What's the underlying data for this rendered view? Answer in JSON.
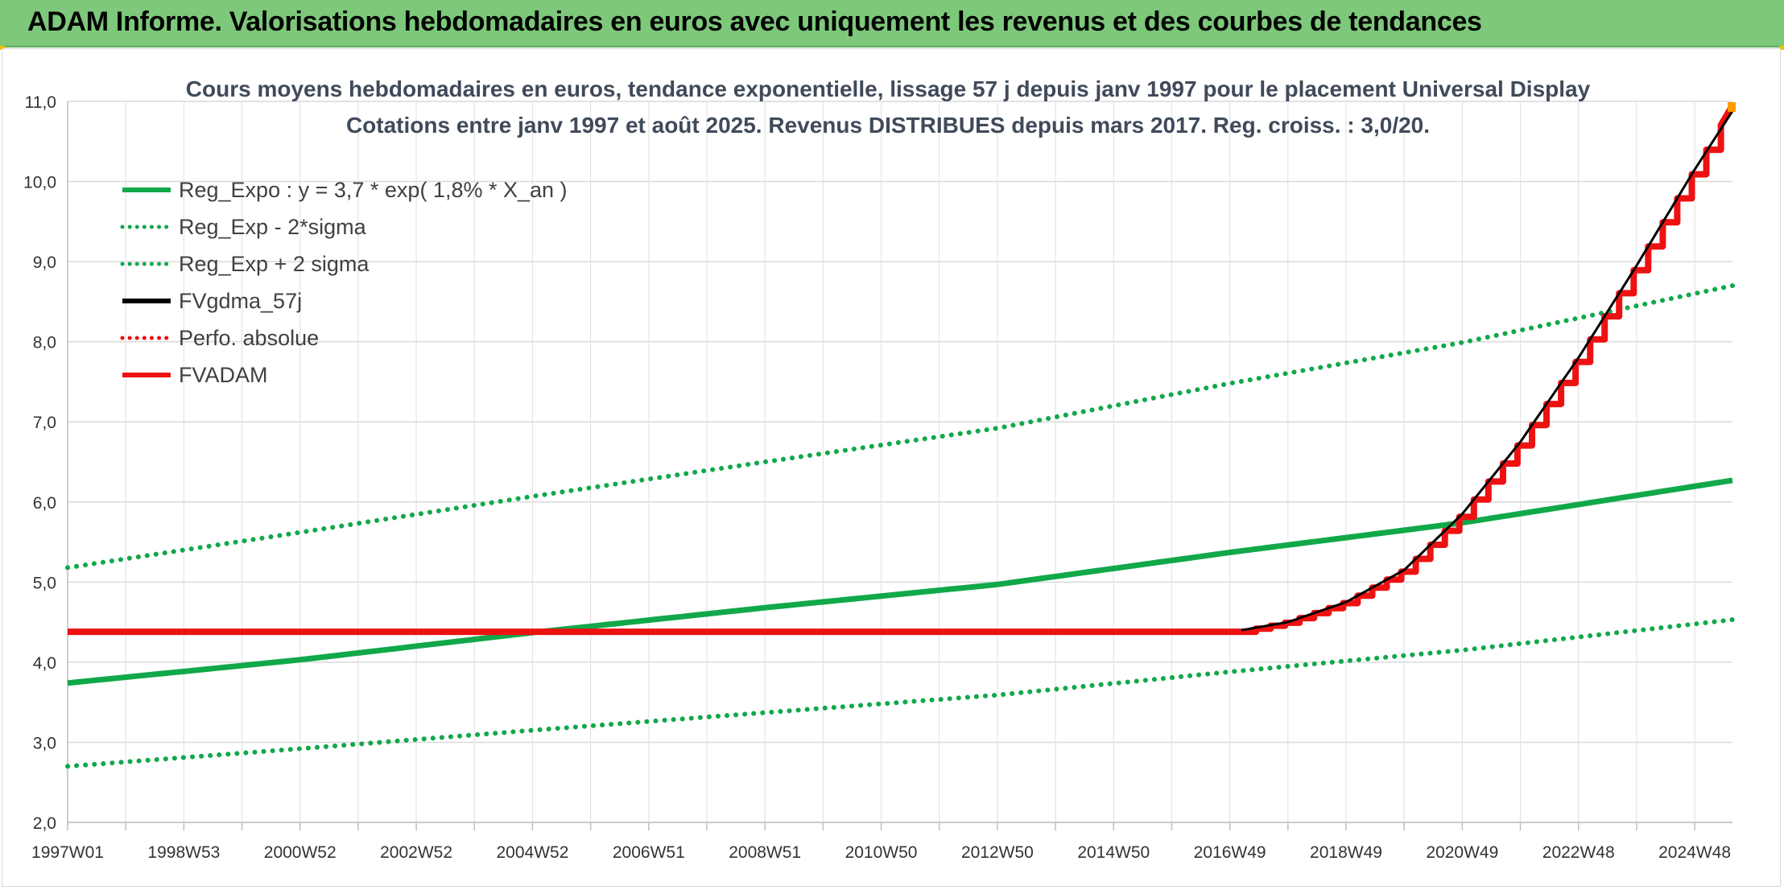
{
  "header": {
    "title": "ADAM Informe. Valorisations hebdomadaires en euros avec uniquement les revenus et des courbes de tendances"
  },
  "colors": {
    "banner": "#7dc87a",
    "green": "#11a84a",
    "red": "#ee1111",
    "black": "#000000",
    "grid": "#d9d9d9"
  },
  "chart_data": {
    "type": "line",
    "title_lines": [
      "Cours moyens hebdomadaires en euros, tendance exponentielle, lissage 57 j depuis janv 1997 pour le placement Universal Display",
      "Cotations entre janv 1997 et août 2025. Revenus DISTRIBUES depuis mars 2017. Reg. croiss. : 3,0/20."
    ],
    "x_ticks": [
      "1997W01",
      "1998W53",
      "2000W52",
      "2002W52",
      "2004W52",
      "2006W51",
      "2008W51",
      "2010W50",
      "2012W50",
      "2014W50",
      "2016W49",
      "2018W49",
      "2020W49",
      "2022W48",
      "2024W48"
    ],
    "x_range": [
      1997.0,
      2025.65
    ],
    "y_ticks": [
      "2,0",
      "3,0",
      "4,0",
      "5,0",
      "6,0",
      "7,0",
      "8,0",
      "9,0",
      "10,0",
      "11,0"
    ],
    "ylim": [
      2,
      11
    ],
    "grid": true,
    "legend_position": "top-left",
    "legend": [
      {
        "label": "Reg_Expo : y = 3,7 * exp( 1,8% *  X_an )",
        "color": "#11a84a",
        "style": "solid"
      },
      {
        "label": "Reg_Exp - 2*sigma",
        "color": "#11a84a",
        "style": "dotted"
      },
      {
        "label": "Reg_Exp + 2 sigma",
        "color": "#11a84a",
        "style": "dotted"
      },
      {
        "label": "FVgdma_57j",
        "color": "#000000",
        "style": "solid"
      },
      {
        "label": "Perfo. absolue",
        "color": "#ee1111",
        "style": "dotted"
      },
      {
        "label": "FVADAM",
        "color": "#ee1111",
        "style": "solid"
      }
    ],
    "series": [
      {
        "name": "Reg_Expo : y = 3,7 * exp( 1,8% *  X_an )",
        "x": [
          1997.0,
          2001.0,
          2005.0,
          2009.0,
          2013.0,
          2017.0,
          2021.0,
          2025.65
        ],
        "y": [
          3.74,
          4.03,
          4.37,
          4.68,
          4.97,
          5.37,
          5.74,
          6.27
        ]
      },
      {
        "name": "Reg_Exp - 2*sigma",
        "x": [
          1997.0,
          2001.0,
          2005.0,
          2009.0,
          2013.0,
          2017.0,
          2021.0,
          2025.65
        ],
        "y": [
          2.7,
          2.92,
          3.15,
          3.37,
          3.59,
          3.88,
          4.15,
          4.53
        ]
      },
      {
        "name": "Reg_Exp + 2 sigma",
        "x": [
          1997.0,
          2001.0,
          2005.0,
          2009.0,
          2013.0,
          2017.0,
          2021.0,
          2025.65
        ],
        "y": [
          5.18,
          5.62,
          6.07,
          6.5,
          6.92,
          7.48,
          7.99,
          8.7
        ]
      },
      {
        "name": "FVgdma_57j",
        "x": [
          2017.2,
          2018.0,
          2019.0,
          2020.0,
          2021.0,
          2022.0,
          2023.0,
          2024.0,
          2025.0,
          2025.65
        ],
        "y": [
          4.4,
          4.5,
          4.75,
          5.15,
          5.85,
          6.75,
          7.8,
          8.95,
          10.15,
          10.88
        ]
      },
      {
        "name": "FVADAM",
        "x": [
          1997.0,
          2017.2,
          2018.0,
          2019.0,
          2020.0,
          2021.0,
          2022.0,
          2023.0,
          2024.0,
          2025.0,
          2025.65
        ],
        "y": [
          4.38,
          4.38,
          4.5,
          4.75,
          5.15,
          5.85,
          6.75,
          7.8,
          8.95,
          10.15,
          10.95
        ]
      }
    ]
  }
}
